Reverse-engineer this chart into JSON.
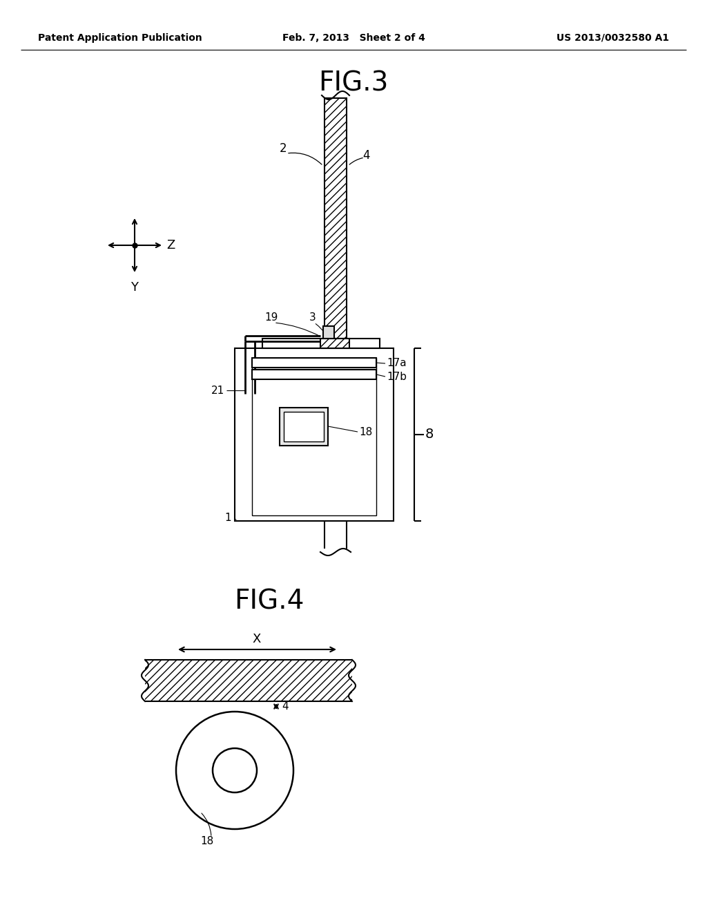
{
  "bg_color": "#ffffff",
  "header_left": "Patent Application Publication",
  "header_mid": "Feb. 7, 2013   Sheet 2 of 4",
  "header_right": "US 2013/0032580 A1",
  "fig3_title": "FIG.3",
  "fig4_title": "FIG.4",
  "line_color": "#000000",
  "label_color": "#000000"
}
